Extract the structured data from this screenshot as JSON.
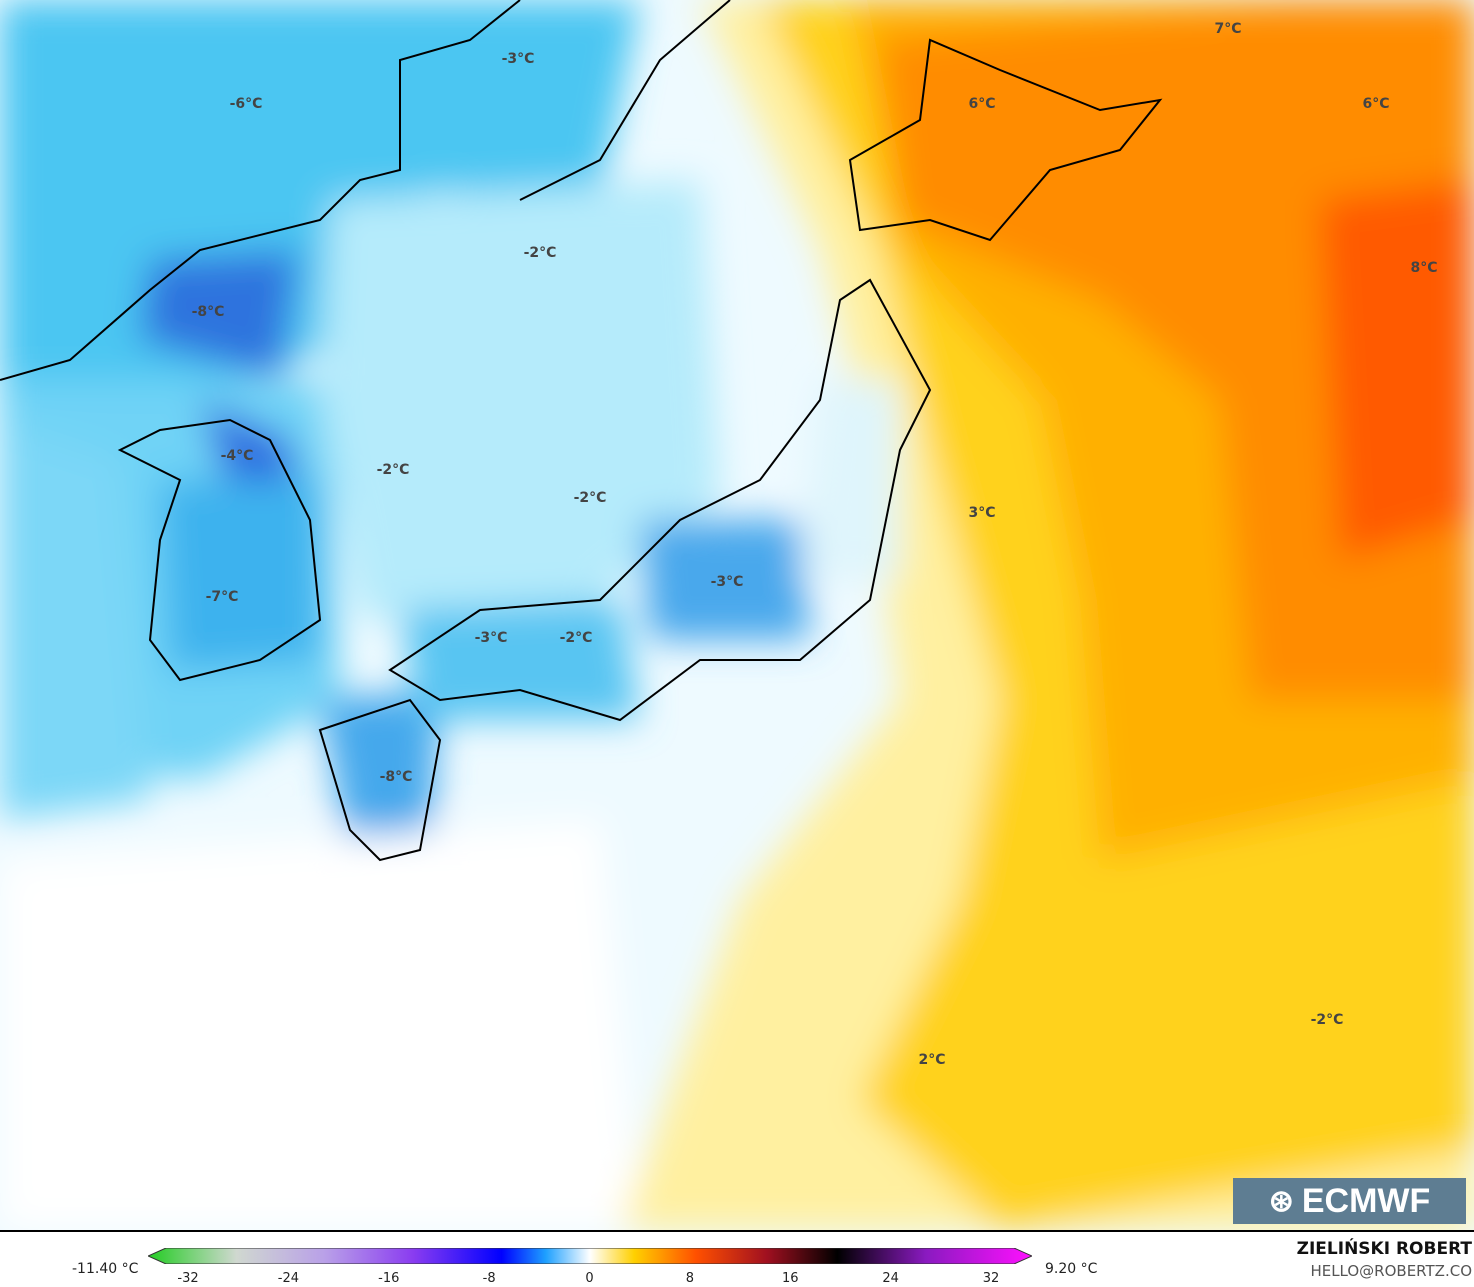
{
  "map": {
    "type": "temperature anomaly map",
    "colors": {
      "cold_strong": "#1e4fd8",
      "cold": "#35c3f0",
      "cold_light": "#bfeefc",
      "neutral": "#ffffff",
      "warm_light": "#fff2a8",
      "warm": "#ffd000",
      "hot": "#ff8c00",
      "hottest": "#ff4800"
    },
    "labels": [
      {
        "text": "-3°C"
      },
      {
        "text": "-6°C"
      },
      {
        "text": "-2°C"
      },
      {
        "text": "-8°C"
      },
      {
        "text": "-4°C"
      },
      {
        "text": "-2°C"
      },
      {
        "text": "-2°C"
      },
      {
        "text": "-7°C"
      },
      {
        "text": "-3°C"
      },
      {
        "text": "-2°C"
      },
      {
        "text": "-3°C"
      },
      {
        "text": "-8°C"
      },
      {
        "text": "7°C"
      },
      {
        "text": "6°C"
      },
      {
        "text": "6°C"
      },
      {
        "text": "8°C"
      },
      {
        "text": "3°C"
      },
      {
        "text": "2°C"
      },
      {
        "text": "-2°C"
      }
    ]
  },
  "colorbar": {
    "min_label": "-11.40 °C",
    "max_label": "9.20 °C",
    "ticks": [
      "-32",
      "-24",
      "-16",
      "-8",
      "0",
      "8",
      "16",
      "24",
      "32"
    ],
    "range": [
      -32,
      32
    ]
  },
  "logo": {
    "text": "ECMWF"
  },
  "credit": {
    "author": "ZIELIŃSKI ROBERT",
    "email": "HELLO@ROBERTZ.CO"
  }
}
